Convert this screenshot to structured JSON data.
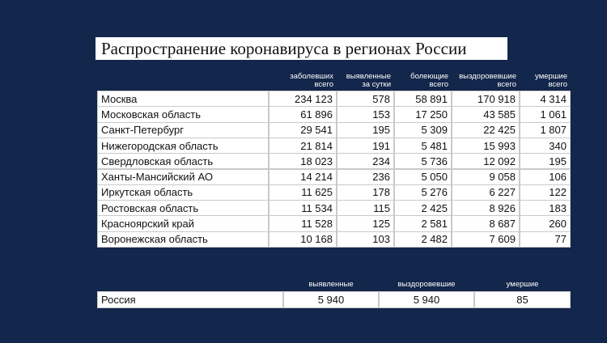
{
  "title": "Распространение коронавируса в регионах России",
  "table": {
    "headers": [
      [
        "заболевших",
        "всего"
      ],
      [
        "выявленные",
        "за сутки"
      ],
      [
        "болеющие",
        "всего"
      ],
      [
        "выздоровевшие",
        "всего"
      ],
      [
        "умершие",
        "всего"
      ]
    ],
    "rows": [
      [
        "Москва",
        "234 123",
        "578",
        "58 891",
        "170 918",
        "4 314"
      ],
      [
        "Московская область",
        "61 896",
        "153",
        "17 250",
        "43 585",
        "1 061"
      ],
      [
        "Санкт-Петербург",
        "29 541",
        "195",
        "5 309",
        "22 425",
        "1 807"
      ],
      [
        "Нижегородская область",
        "21 814",
        "191",
        "5 481",
        "15 993",
        "340"
      ],
      [
        "Свердловская область",
        "18 023",
        "234",
        "5 736",
        "12 092",
        "195"
      ],
      [
        "Ханты-Мансийский АО",
        "14 214",
        "236",
        "5 050",
        "9 058",
        "106"
      ],
      [
        "Иркутская область",
        "11 625",
        "178",
        "5 276",
        "6 227",
        "122"
      ],
      [
        "Ростовская область",
        "11 534",
        "115",
        "2 425",
        "8 926",
        "183"
      ],
      [
        "Красноярский край",
        "11 528",
        "125",
        "2 581",
        "8 687",
        "260"
      ],
      [
        "Воронежская область",
        "10 168",
        "103",
        "2 482",
        "7 609",
        "77"
      ]
    ]
  },
  "summary": {
    "headers": [
      "выявленные",
      "выздоровевшие",
      "умершие"
    ],
    "row": [
      "Россия",
      "5 940",
      "5 940",
      "85"
    ]
  }
}
